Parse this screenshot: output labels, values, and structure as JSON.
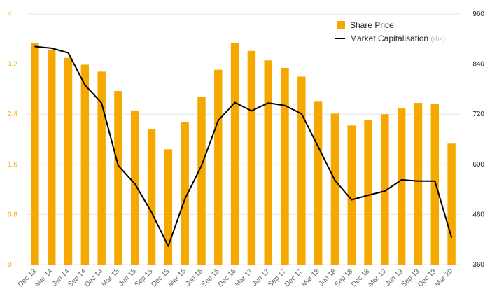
{
  "chart_data": {
    "type": "bar+line",
    "categories": [
      "Dec 13",
      "Mar 14",
      "Jun 14",
      "Sep 14",
      "Dec 14",
      "Mar 15",
      "Jun 15",
      "Sep 15",
      "Dec 15",
      "Mar 16",
      "Jun 16",
      "Sep 16",
      "Dec 16",
      "Mar 17",
      "Jun 17",
      "Sep 17",
      "Dec 17",
      "Mar 18",
      "Jun 18",
      "Sep 18",
      "Dec 18",
      "Mar 19",
      "Jun 19",
      "Sep 19",
      "Dec 19",
      "Mar 20"
    ],
    "series": [
      {
        "name": "Share Price",
        "type": "bar",
        "axis": "left",
        "color": "#f5a800",
        "values": [
          3.54,
          3.43,
          3.3,
          3.19,
          3.08,
          2.77,
          2.46,
          2.16,
          1.84,
          2.27,
          2.68,
          3.11,
          3.54,
          3.41,
          3.26,
          3.14,
          3.0,
          2.6,
          2.41,
          2.22,
          2.31,
          2.4,
          2.49,
          2.58,
          2.57,
          1.93
        ]
      },
      {
        "name": "Market Capitalisation",
        "name_note": "(rhs)",
        "type": "line",
        "axis": "right",
        "color": "#000000",
        "values": [
          882,
          878,
          867,
          790,
          747,
          597,
          553,
          485,
          404,
          517,
          597,
          705,
          748,
          728,
          747,
          741,
          721,
          642,
          562,
          515,
          526,
          536,
          563,
          560,
          560,
          425
        ]
      }
    ],
    "y_left": {
      "ticks": [
        "0",
        "0.8",
        "1.6",
        "2.4",
        "3.2",
        "4"
      ],
      "ylim": [
        0,
        4
      ]
    },
    "y_right": {
      "ticks": [
        "360",
        "480",
        "600",
        "720",
        "840",
        "960"
      ],
      "ylim": [
        360,
        960
      ]
    },
    "grid": true,
    "legend_position": "top-right"
  }
}
